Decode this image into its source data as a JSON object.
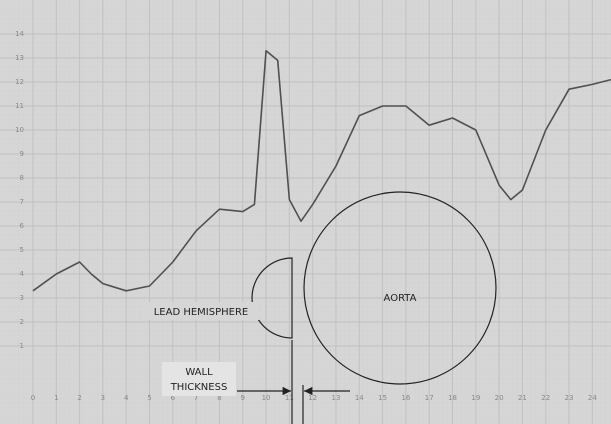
{
  "chart_data": {
    "type": "line",
    "x": [
      0,
      1,
      2,
      2.5,
      3,
      4,
      5,
      6,
      7,
      8,
      9,
      9.5,
      10,
      10.5,
      11,
      11.5,
      12,
      13,
      14,
      15,
      16,
      17,
      18,
      19,
      20,
      20.5,
      21,
      22,
      23,
      24,
      24.8
    ],
    "values": [
      3.3,
      4.0,
      4.5,
      4.0,
      3.6,
      3.3,
      3.5,
      4.5,
      5.8,
      6.7,
      6.6,
      6.9,
      13.3,
      12.9,
      7.1,
      6.2,
      6.9,
      8.5,
      10.6,
      11.0,
      11.0,
      10.2,
      10.5,
      10.0,
      7.7,
      7.1,
      7.5,
      10.0,
      11.7,
      11.9,
      12.1
    ],
    "color": "#505050",
    "xlim": [
      0,
      24.8
    ],
    "ylim": [
      -2,
      15
    ],
    "xticks": [
      0,
      1,
      2,
      3,
      4,
      5,
      6,
      7,
      8,
      9,
      10,
      11,
      12,
      13,
      14,
      15,
      16,
      17,
      18,
      19,
      20,
      21,
      22,
      23,
      24
    ],
    "yticks": [
      1,
      2,
      3,
      4,
      5,
      6,
      7,
      8,
      9,
      10,
      11,
      12,
      13,
      14
    ],
    "grid": true
  },
  "diagram": {
    "hemisphere": "LEAD HEMISPHERE",
    "aorta": "AORTA",
    "wall": [
      "WALL",
      "THICKNESS"
    ]
  }
}
